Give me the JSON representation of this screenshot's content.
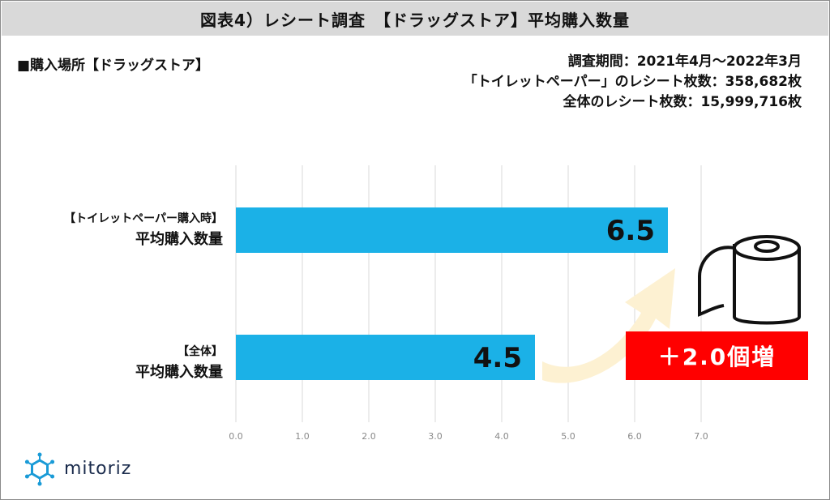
{
  "header": {
    "title": "図表4）レシート調査　【ドラッグストア】平均購入数量"
  },
  "subtitle": "■購入場所【ドラッグストア】",
  "meta": {
    "period": "調査期間：2021年4月～2022年3月",
    "tp_receipts": "「トイレットペーパー」のレシート枚数：358,682枚",
    "all_receipts": "全体のレシート枚数：15,999,716枚"
  },
  "chart_data": {
    "type": "bar",
    "orientation": "horizontal",
    "categories": [
      {
        "line1": "【トイレットペーパー購入時】",
        "line2": "平均購入数量"
      },
      {
        "line1": "【全体】",
        "line2": "平均購入数量"
      }
    ],
    "values": [
      6.5,
      4.5
    ],
    "data_labels": [
      "6.5",
      "4.5"
    ],
    "x_ticks": [
      "0.0",
      "1.0",
      "2.0",
      "3.0",
      "4.0",
      "5.0",
      "6.0",
      "7.0"
    ],
    "xlim": [
      0,
      7
    ],
    "grid": "vertical",
    "annotation": "＋2.0個増",
    "colors": {
      "bar": "#1bb1e7",
      "badge": "#ff0000",
      "arrow": "#fdf1d2",
      "logo": "#1a9bd7"
    }
  },
  "logo": {
    "text": "mitoriz"
  }
}
